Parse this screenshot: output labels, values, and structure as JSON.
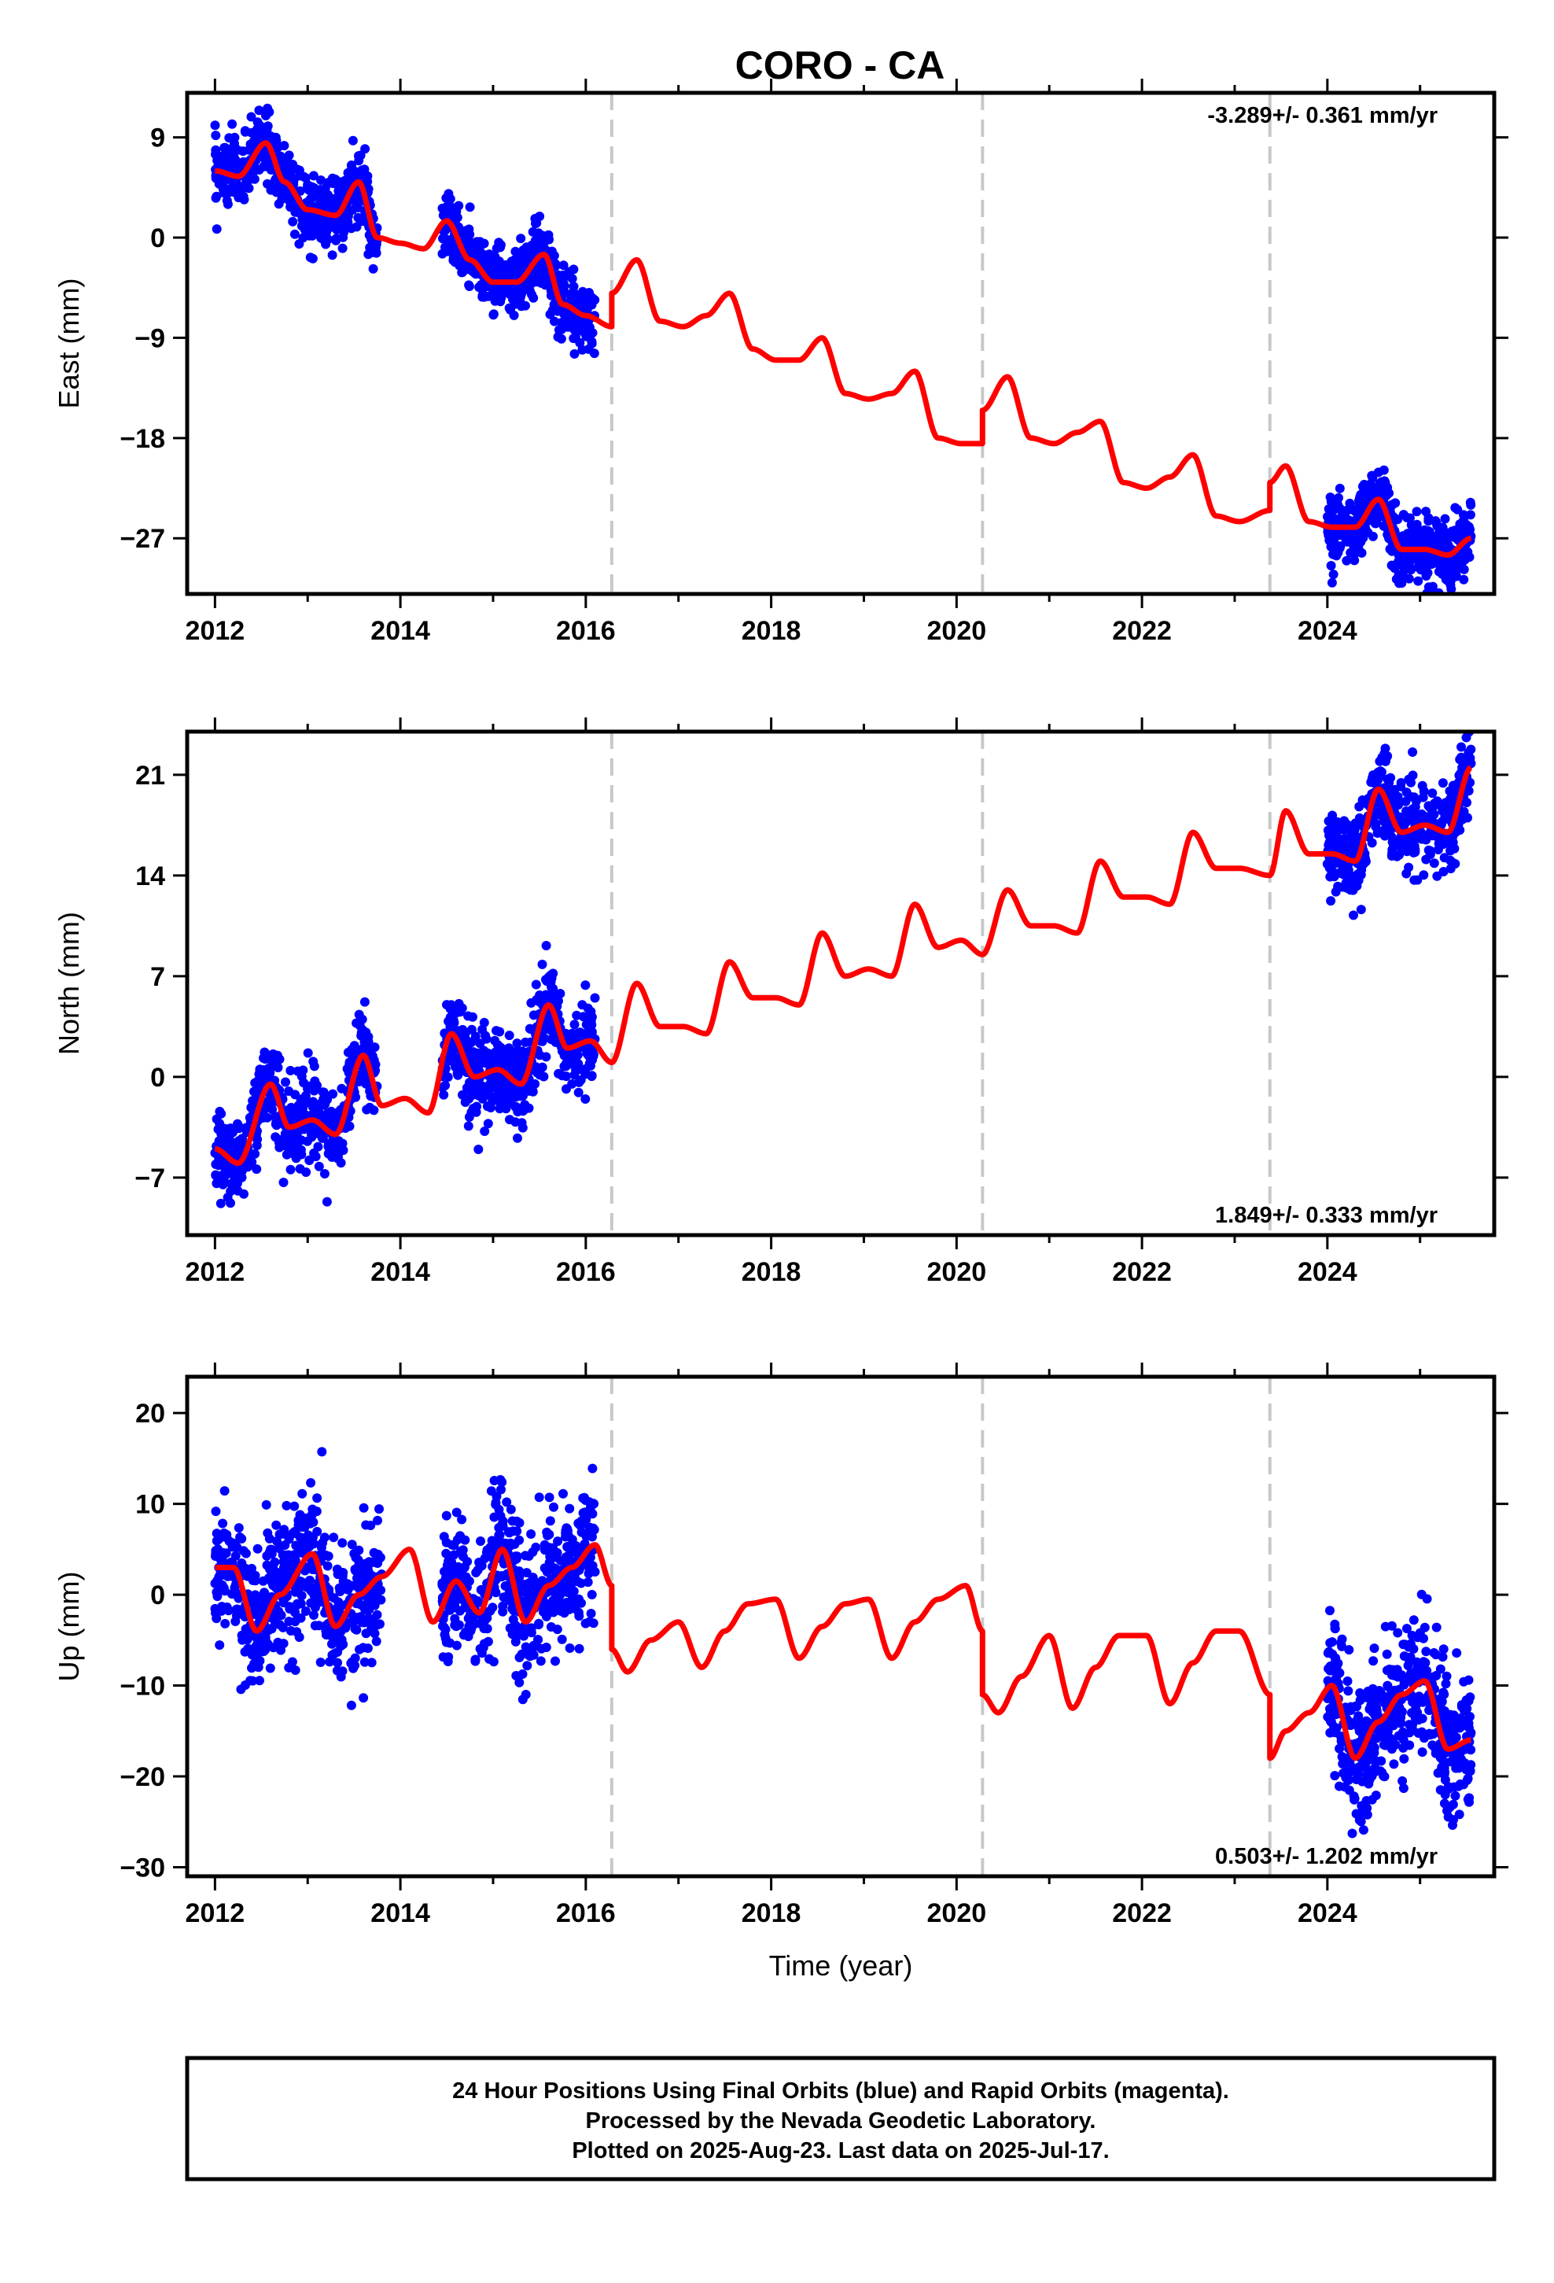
{
  "colors": {
    "data_points": "#0000ff",
    "model_line": "#ff0000",
    "event_lines": "#c8c8c8",
    "frame": "#000000"
  },
  "chart_data": [
    {
      "type": "scatter",
      "title": "CORO - CA",
      "ylabel": "East (mm)",
      "xlabel": "",
      "xlim": [
        2011.7,
        2025.8
      ],
      "ylim": [
        -32,
        13
      ],
      "xticks": [
        2012,
        2014,
        2016,
        2018,
        2020,
        2022,
        2024
      ],
      "yticks": [
        9,
        0,
        -9,
        -18,
        -27
      ],
      "rate_text": "-3.289+/- 0.361 mm/yr",
      "rate_position": "top-right",
      "event_lines_x": [
        2016.28,
        2020.28,
        2023.38
      ],
      "data_segments": [
        [
          2012.0,
          2013.75
        ],
        [
          2014.45,
          2016.1
        ],
        [
          2024.0,
          2025.55
        ]
      ],
      "model": {
        "name": "model",
        "x": [
          2012.0,
          2012.25,
          2012.55,
          2012.75,
          2013.0,
          2013.3,
          2013.55,
          2013.75,
          2014.0,
          2014.25,
          2014.5,
          2014.75,
          2015.0,
          2015.25,
          2015.55,
          2015.75,
          2016.0,
          2016.28,
          2016.28,
          2016.55,
          2016.8,
          2017.05,
          2017.3,
          2017.55,
          2017.8,
          2018.05,
          2018.3,
          2018.55,
          2018.8,
          2019.05,
          2019.3,
          2019.55,
          2019.8,
          2020.05,
          2020.28,
          2020.28,
          2020.55,
          2020.8,
          2021.05,
          2021.3,
          2021.55,
          2021.8,
          2022.05,
          2022.3,
          2022.55,
          2022.8,
          2023.05,
          2023.38,
          2023.38,
          2023.55,
          2023.8,
          2024.05,
          2024.3,
          2024.55,
          2024.8,
          2025.05,
          2025.3,
          2025.55
        ],
        "y": [
          6,
          5.5,
          8.5,
          5,
          2.5,
          2,
          5,
          0,
          -0.5,
          -1,
          1.5,
          -2,
          -4,
          -4,
          -1.5,
          -6,
          -7,
          -8,
          -5,
          -2,
          -7.5,
          -8,
          -7,
          -5,
          -10,
          -11,
          -11,
          -9,
          -14,
          -14.5,
          -14,
          -12,
          -18,
          -18.5,
          -18.5,
          -15.5,
          -12.5,
          -18,
          -18.5,
          -17.5,
          -16.5,
          -22,
          -22.5,
          -21.5,
          -19.5,
          -25,
          -25.5,
          -24.5,
          -22,
          -20.5,
          -25.5,
          -26,
          -26,
          -23.5,
          -28,
          -28,
          -28.5,
          -27
        ]
      },
      "points_summary": {
        "name": "24 Hour Positions",
        "note": "values scatter roughly +/- 2 mm around the model curve",
        "scatter_mm": 2.0
      }
    },
    {
      "type": "scatter",
      "title": "",
      "ylabel": "North (mm)",
      "xlabel": "",
      "xlim": [
        2011.7,
        2025.8
      ],
      "ylim": [
        -11,
        24
      ],
      "xticks": [
        2012,
        2014,
        2016,
        2018,
        2020,
        2022,
        2024
      ],
      "yticks": [
        21,
        14,
        7,
        0,
        -7
      ],
      "rate_text": "1.849+/- 0.333 mm/yr",
      "rate_position": "bottom-right",
      "event_lines_x": [
        2016.28,
        2020.28,
        2023.38
      ],
      "data_segments": [
        [
          2012.0,
          2013.75
        ],
        [
          2014.45,
          2016.1
        ],
        [
          2024.0,
          2025.55
        ]
      ],
      "model": {
        "name": "model",
        "x": [
          2012.0,
          2012.25,
          2012.6,
          2012.8,
          2013.05,
          2013.3,
          2013.6,
          2013.8,
          2014.05,
          2014.3,
          2014.55,
          2014.8,
          2015.05,
          2015.3,
          2015.6,
          2015.8,
          2016.05,
          2016.28,
          2016.55,
          2016.8,
          2017.05,
          2017.3,
          2017.55,
          2017.8,
          2018.05,
          2018.3,
          2018.55,
          2018.8,
          2019.05,
          2019.3,
          2019.55,
          2019.8,
          2020.05,
          2020.28,
          2020.55,
          2020.8,
          2021.05,
          2021.3,
          2021.55,
          2021.8,
          2022.05,
          2022.3,
          2022.55,
          2022.8,
          2023.05,
          2023.38,
          2023.55,
          2023.8,
          2024.05,
          2024.3,
          2024.55,
          2024.8,
          2025.05,
          2025.3,
          2025.55
        ],
        "y": [
          -5,
          -6,
          -0.5,
          -3.5,
          -3,
          -4,
          1.5,
          -2,
          -1.5,
          -2.5,
          3,
          0,
          0.5,
          -0.5,
          5,
          2,
          2.5,
          1,
          6.5,
          3.5,
          3.5,
          3,
          8,
          5.5,
          5.5,
          5,
          10,
          7,
          7.5,
          7,
          12,
          9,
          9.5,
          8.5,
          13,
          10.5,
          10.5,
          10,
          15,
          12.5,
          12.5,
          12,
          17,
          14.5,
          14.5,
          14,
          18.5,
          15.5,
          15.5,
          15,
          20,
          17,
          17.5,
          17,
          21.5
        ]
      },
      "points_summary": {
        "name": "24 Hour Positions",
        "note": "values scatter roughly +/- 2 mm around the model curve",
        "scatter_mm": 2.0
      }
    },
    {
      "type": "scatter",
      "title": "",
      "ylabel": "Up (mm)",
      "xlabel": "Time (year)",
      "xlim": [
        2011.7,
        2025.8
      ],
      "ylim": [
        -31,
        24
      ],
      "xticks": [
        2012,
        2014,
        2016,
        2018,
        2020,
        2022,
        2024
      ],
      "yticks": [
        20,
        10,
        0,
        -10,
        -20,
        -30
      ],
      "rate_text": "0.503+/- 1.202 mm/yr",
      "rate_position": "bottom-right",
      "event_lines_x": [
        2016.28,
        2020.28,
        2023.38
      ],
      "data_segments": [
        [
          2012.0,
          2013.8
        ],
        [
          2014.45,
          2016.1
        ],
        [
          2024.0,
          2025.55
        ]
      ],
      "model": {
        "name": "model",
        "x": [
          2012.0,
          2012.2,
          2012.45,
          2012.7,
          2013.05,
          2013.3,
          2013.55,
          2013.8,
          2014.1,
          2014.35,
          2014.6,
          2014.85,
          2015.1,
          2015.35,
          2015.6,
          2015.85,
          2016.1,
          2016.28,
          2016.28,
          2016.45,
          2016.7,
          2017.0,
          2017.25,
          2017.5,
          2017.75,
          2018.05,
          2018.3,
          2018.55,
          2018.8,
          2019.05,
          2019.3,
          2019.55,
          2019.8,
          2020.1,
          2020.28,
          2020.28,
          2020.45,
          2020.7,
          2021.0,
          2021.25,
          2021.5,
          2021.75,
          2022.05,
          2022.3,
          2022.55,
          2022.8,
          2023.05,
          2023.38,
          2023.38,
          2023.55,
          2023.8,
          2024.05,
          2024.3,
          2024.55,
          2024.8,
          2025.05,
          2025.3,
          2025.55
        ],
        "y": [
          3,
          3,
          -4,
          0,
          4.5,
          -3.5,
          0,
          2,
          5,
          -3,
          1.5,
          -2,
          5,
          -3,
          1,
          3,
          5.5,
          1,
          -6,
          -8.5,
          -5,
          -3,
          -8,
          -4,
          -1,
          -0.5,
          -7,
          -3.5,
          -1,
          -0.5,
          -7,
          -3,
          -0.5,
          1,
          -4,
          -11,
          -13,
          -9,
          -4.5,
          -12.5,
          -8,
          -4.5,
          -4.5,
          -12,
          -7.5,
          -4,
          -4,
          -11,
          -18,
          -15,
          -13,
          -10,
          -18,
          -14,
          -11,
          -9.5,
          -17,
          -16
        ]
      },
      "points_summary": {
        "name": "24 Hour Positions",
        "note": "values scatter roughly +/- 5 mm around the model curve",
        "scatter_mm": 5.0
      }
    }
  ],
  "info_box": {
    "line1": "24 Hour Positions Using Final Orbits (blue) and Rapid Orbits (magenta).",
    "line2": "Processed by the Nevada Geodetic Laboratory.",
    "line3": "Plotted on 2025-Aug-23. Last data on 2025-Jul-17."
  }
}
